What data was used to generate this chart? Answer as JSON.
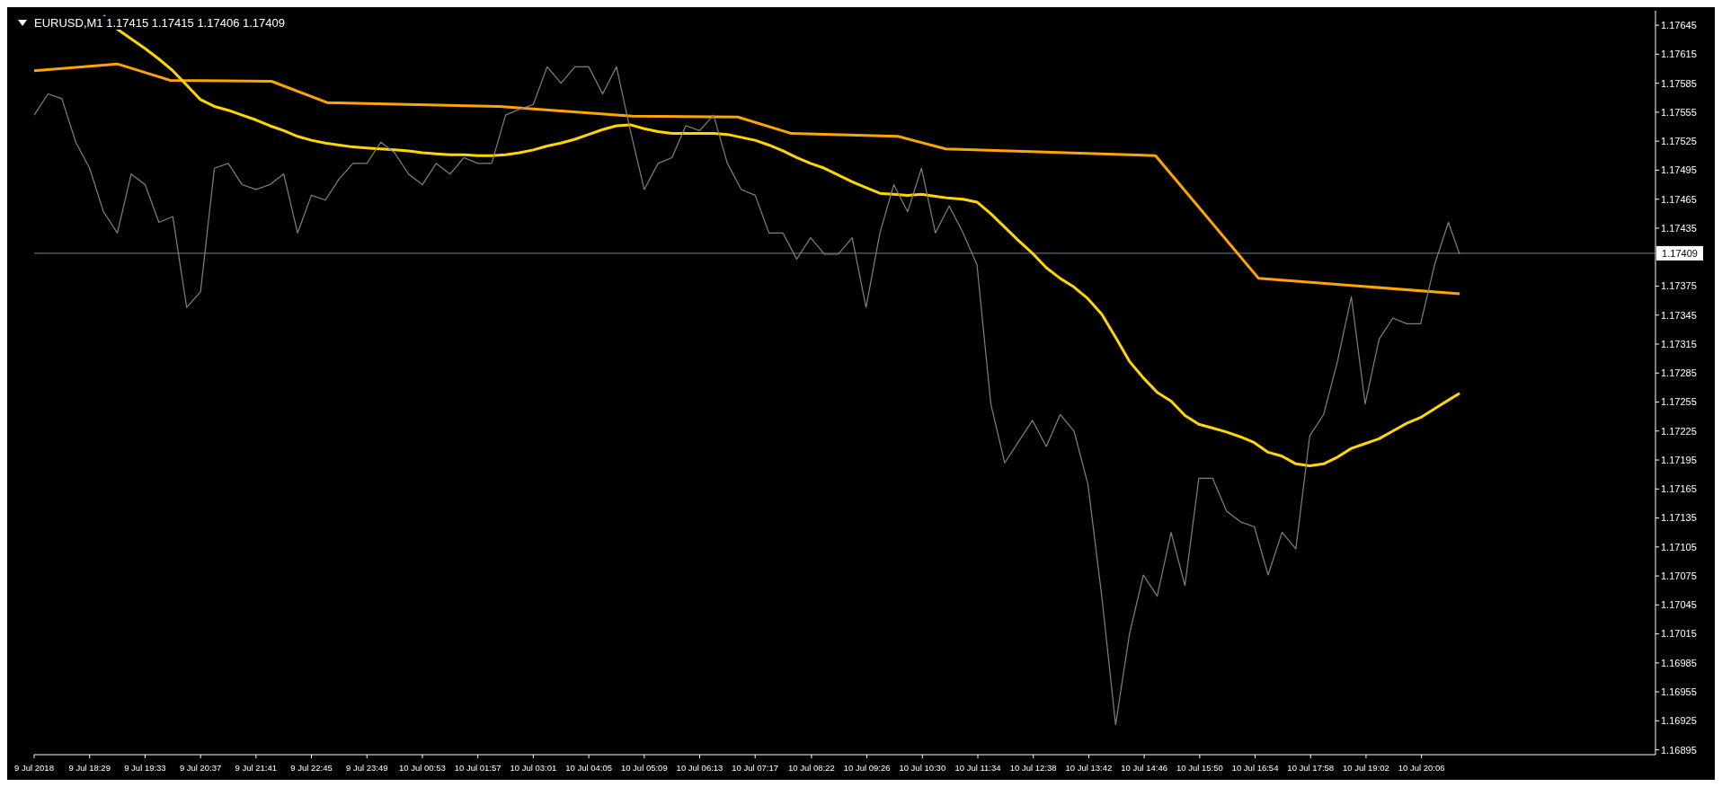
{
  "chart_data": {
    "type": "line",
    "title": "EURUSD,M1  1.17415 1.17415 1.17406 1.17409",
    "grid": false,
    "legend": false,
    "marker": "none",
    "line_style": "solid",
    "x": [
      "2018-07-09T17:25",
      "2018-07-09T17:41",
      "2018-07-09T17:57",
      "2018-07-09T18:13",
      "2018-07-09T18:29",
      "2018-07-09T18:45",
      "2018-07-09T19:01",
      "2018-07-09T19:17",
      "2018-07-09T19:33",
      "2018-07-09T19:49",
      "2018-07-09T20:05",
      "2018-07-09T20:21",
      "2018-07-09T20:37",
      "2018-07-09T20:53",
      "2018-07-09T21:09",
      "2018-07-09T21:25",
      "2018-07-09T21:41",
      "2018-07-09T21:57",
      "2018-07-09T22:13",
      "2018-07-09T22:29",
      "2018-07-09T22:45",
      "2018-07-09T23:01",
      "2018-07-09T23:17",
      "2018-07-09T23:33",
      "2018-07-09T23:49",
      "2018-07-10T00:05",
      "2018-07-10T00:21",
      "2018-07-10T00:37",
      "2018-07-10T00:53",
      "2018-07-10T01:09",
      "2018-07-10T01:25",
      "2018-07-10T01:41",
      "2018-07-10T01:57",
      "2018-07-10T02:13",
      "2018-07-10T02:29",
      "2018-07-10T02:45",
      "2018-07-10T03:01",
      "2018-07-10T03:17",
      "2018-07-10T03:33",
      "2018-07-10T03:49",
      "2018-07-10T04:05",
      "2018-07-10T04:21",
      "2018-07-10T04:37",
      "2018-07-10T04:53",
      "2018-07-10T05:09",
      "2018-07-10T05:25",
      "2018-07-10T05:41",
      "2018-07-10T05:57",
      "2018-07-10T06:13",
      "2018-07-10T06:29",
      "2018-07-10T06:45",
      "2018-07-10T07:01",
      "2018-07-10T07:17",
      "2018-07-10T07:33",
      "2018-07-10T07:49",
      "2018-07-10T08:05",
      "2018-07-10T08:21",
      "2018-07-10T08:37",
      "2018-07-10T08:53",
      "2018-07-10T09:09",
      "2018-07-10T09:25",
      "2018-07-10T09:41",
      "2018-07-10T09:57",
      "2018-07-10T10:13",
      "2018-07-10T10:29",
      "2018-07-10T10:45",
      "2018-07-10T11:01",
      "2018-07-10T11:17",
      "2018-07-10T11:33",
      "2018-07-10T11:49",
      "2018-07-10T12:05",
      "2018-07-10T12:21",
      "2018-07-10T12:37",
      "2018-07-10T12:53",
      "2018-07-10T13:09",
      "2018-07-10T13:25",
      "2018-07-10T13:41",
      "2018-07-10T13:57",
      "2018-07-10T14:13",
      "2018-07-10T14:29",
      "2018-07-10T14:45",
      "2018-07-10T15:01",
      "2018-07-10T15:17",
      "2018-07-10T15:33",
      "2018-07-10T15:49",
      "2018-07-10T16:05",
      "2018-07-10T16:21",
      "2018-07-10T16:37",
      "2018-07-10T16:53",
      "2018-07-10T17:09",
      "2018-07-10T17:25",
      "2018-07-10T17:41",
      "2018-07-10T17:57",
      "2018-07-10T18:13",
      "2018-07-10T18:29",
      "2018-07-10T18:45",
      "2018-07-10T19:01",
      "2018-07-10T19:17",
      "2018-07-10T19:33",
      "2018-07-10T19:49",
      "2018-07-10T20:05",
      "2018-07-10T20:21",
      "2018-07-10T20:37",
      "2018-07-10T20:50"
    ],
    "series": [
      {
        "color": "#808080",
        "values": [
          1.17552,
          1.17574,
          1.17569,
          1.17524,
          1.17497,
          1.17452,
          1.1743,
          1.17491,
          1.1748,
          1.17441,
          1.17447,
          1.17353,
          1.17369,
          1.17497,
          1.17502,
          1.1748,
          1.17475,
          1.1748,
          1.17491,
          1.1743,
          1.17469,
          1.17464,
          1.17486,
          1.17502,
          1.17502,
          1.17524,
          1.17513,
          1.17491,
          1.1748,
          1.17502,
          1.17491,
          1.17508,
          1.17502,
          1.17502,
          1.17552,
          1.17558,
          1.17563,
          1.17602,
          1.17585,
          1.17602,
          1.17602,
          1.17574,
          1.17602,
          1.17536,
          1.17475,
          1.17502,
          1.17508,
          1.17541,
          1.17536,
          1.17552,
          1.17502,
          1.17475,
          1.17469,
          1.1743,
          1.1743,
          1.17403,
          1.17425,
          1.17408,
          1.17408,
          1.17425,
          1.17353,
          1.1743,
          1.1748,
          1.17452,
          1.17497,
          1.1743,
          1.17458,
          1.1743,
          1.17397,
          1.17253,
          1.17192,
          1.17214,
          1.17236,
          1.17209,
          1.17242,
          1.17225,
          1.1717,
          1.17054,
          1.16921,
          1.17015,
          1.17076,
          1.17054,
          1.1712,
          1.17065,
          1.17176,
          1.17176,
          1.17142,
          1.17131,
          1.17126,
          1.17076,
          1.1712,
          1.17103,
          1.1722,
          1.17242,
          1.17297,
          1.17364,
          1.17253,
          1.1732,
          1.17342,
          1.17336,
          1.17336,
          1.17397,
          1.17441,
          1.17408
        ]
      },
      {
        "color": "#ffd700",
        "values": [
          null,
          null,
          null,
          null,
          null,
          1.17655,
          1.17641,
          1.17631,
          1.17621,
          1.1761,
          1.17598,
          1.17583,
          1.17568,
          1.17561,
          1.17557,
          1.17552,
          1.17547,
          1.17541,
          1.17536,
          1.1753,
          1.17526,
          1.17523,
          1.17521,
          1.17519,
          1.17518,
          1.17517,
          1.17516,
          1.17515,
          1.17513,
          1.17512,
          1.17511,
          1.17511,
          1.1751,
          1.1751,
          1.17511,
          1.17513,
          1.17516,
          1.1752,
          1.17523,
          1.17527,
          1.17532,
          1.17537,
          1.17541,
          1.17542,
          1.17538,
          1.17535,
          1.17533,
          1.17533,
          1.17533,
          1.17533,
          1.17532,
          1.17529,
          1.17526,
          1.17521,
          1.17515,
          1.17508,
          1.17502,
          1.17497,
          1.1749,
          1.17483,
          1.17477,
          1.17471,
          1.1747,
          1.17469,
          1.1747,
          1.17468,
          1.17466,
          1.17465,
          1.17462,
          1.1745,
          1.17436,
          1.17422,
          1.17409,
          1.17394,
          1.17383,
          1.17374,
          1.17362,
          1.17346,
          1.17322,
          1.17297,
          1.1728,
          1.17265,
          1.17256,
          1.17241,
          1.17232,
          1.17228,
          1.17224,
          1.17219,
          1.17213,
          1.17203,
          1.17199,
          1.17191,
          1.17189,
          1.17191,
          1.17198,
          1.17207,
          1.17212,
          1.17217,
          1.17225,
          1.17233,
          1.17239,
          1.17248,
          1.17257,
          1.17264
        ]
      },
      {
        "color": "#ffa500",
        "x": [
          "2018-07-09T17:25",
          "2018-07-09T19:01",
          "2018-07-09T20:02",
          "2018-07-09T21:59",
          "2018-07-09T23:03",
          "2018-07-10T02:22",
          "2018-07-10T04:55",
          "2018-07-10T06:57",
          "2018-07-10T07:59",
          "2018-07-10T10:02",
          "2018-07-10T10:57",
          "2018-07-10T14:59",
          "2018-07-10T16:58",
          "2018-07-10T20:50"
        ],
        "values": [
          1.17598,
          1.17605,
          1.17588,
          1.17587,
          1.17565,
          1.17561,
          1.17551,
          1.1755,
          1.17533,
          1.1753,
          1.17517,
          1.1751,
          1.17383,
          1.17367
        ]
      }
    ],
    "xlim": [
      "2018-07-09T17:25",
      "2018-07-11T00:36"
    ],
    "xticks": [
      {
        "value": "2018-07-09T17:25",
        "label": "9 Jul 2018"
      },
      {
        "value": "2018-07-09T18:29",
        "label": "9 Jul 18:29"
      },
      {
        "value": "2018-07-09T19:33",
        "label": "9 Jul 19:33"
      },
      {
        "value": "2018-07-09T20:37",
        "label": "9 Jul 20:37"
      },
      {
        "value": "2018-07-09T21:41",
        "label": "9 Jul 21:41"
      },
      {
        "value": "2018-07-09T22:45",
        "label": "9 Jul 22:45"
      },
      {
        "value": "2018-07-09T23:49",
        "label": "9 Jul 23:49"
      },
      {
        "value": "2018-07-10T00:53",
        "label": "10 Jul 00:53"
      },
      {
        "value": "2018-07-10T01:57",
        "label": "10 Jul 01:57"
      },
      {
        "value": "2018-07-10T03:01",
        "label": "10 Jul 03:01"
      },
      {
        "value": "2018-07-10T04:05",
        "label": "10 Jul 04:05"
      },
      {
        "value": "2018-07-10T05:09",
        "label": "10 Jul 05:09"
      },
      {
        "value": "2018-07-10T06:13",
        "label": "10 Jul 06:13"
      },
      {
        "value": "2018-07-10T07:17",
        "label": "10 Jul 07:17"
      },
      {
        "value": "2018-07-10T08:22",
        "label": "10 Jul 08:22"
      },
      {
        "value": "2018-07-10T09:26",
        "label": "10 Jul 09:26"
      },
      {
        "value": "2018-07-10T10:30",
        "label": "10 Jul 10:30"
      },
      {
        "value": "2018-07-10T11:34",
        "label": "10 Jul 11:34"
      },
      {
        "value": "2018-07-10T12:38",
        "label": "10 Jul 12:38"
      },
      {
        "value": "2018-07-10T13:42",
        "label": "10 Jul 13:42"
      },
      {
        "value": "2018-07-10T14:46",
        "label": "10 Jul 14:46"
      },
      {
        "value": "2018-07-10T15:50",
        "label": "10 Jul 15:50"
      },
      {
        "value": "2018-07-10T16:54",
        "label": "10 Jul 16:54"
      },
      {
        "value": "2018-07-10T17:58",
        "label": "10 Jul 17:58"
      },
      {
        "value": "2018-07-10T19:02",
        "label": "10 Jul 19:02"
      },
      {
        "value": "2018-07-10T20:06",
        "label": "10 Jul 20:06"
      }
    ],
    "ylim": [
      1.1689,
      1.1766
    ],
    "yticks": [
      1.16895,
      1.16925,
      1.16955,
      1.16985,
      1.17015,
      1.17045,
      1.17075,
      1.17105,
      1.17135,
      1.17165,
      1.17195,
      1.17225,
      1.17255,
      1.17285,
      1.17315,
      1.17345,
      1.17375,
      1.17435,
      1.17465,
      1.17495,
      1.17525,
      1.17555,
      1.17585,
      1.17615,
      1.17645
    ],
    "ref_lines": [
      {
        "axis": "y",
        "value": 1.17409,
        "label": "1.17409",
        "color": "#708090"
      }
    ]
  }
}
